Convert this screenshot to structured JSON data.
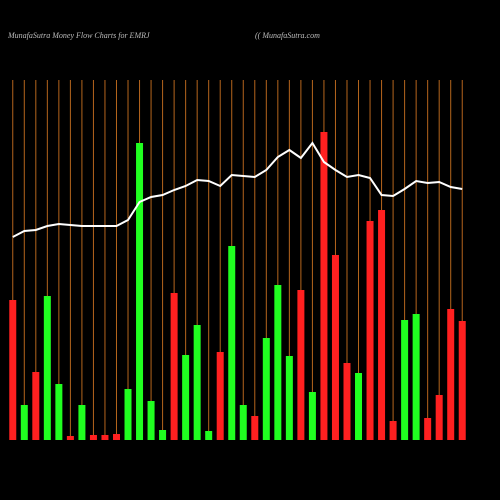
{
  "chart_data": {
    "type": "money-flow",
    "title": "MunafaSutra  Money Flow  Charts for EMRJ",
    "subtitle": "(( MunafaSutra.com",
    "categories": [
      null,
      null,
      null,
      null,
      null,
      null,
      null,
      null,
      null,
      null,
      null,
      null,
      null,
      null,
      null,
      null,
      null,
      null,
      null,
      null,
      null,
      null,
      null,
      null,
      null,
      null,
      null,
      null,
      null,
      null,
      null,
      null,
      null,
      null,
      null,
      null,
      null,
      null,
      null,
      null
    ],
    "series": [
      {
        "type": "bar",
        "values": [
          140,
          35,
          68,
          144,
          56,
          4,
          35,
          5,
          5,
          6,
          51,
          297,
          39,
          10,
          147,
          85,
          115,
          9,
          88,
          194,
          35,
          24,
          102,
          155,
          84,
          150,
          48,
          308,
          185,
          77,
          67,
          219,
          230,
          19,
          120,
          126,
          22,
          45,
          131,
          119
        ],
        "colors": [
          "#ff2020",
          "#20ff20",
          "#ff2020",
          "#20ff20",
          "#20ff20",
          "#ff2020",
          "#20ff20",
          "#ff2020",
          "#ff2020",
          "#ff2020",
          "#20ff20",
          "#20ff20",
          "#20ff20",
          "#20ff20",
          "#ff2020",
          "#20ff20",
          "#20ff20",
          "#20ff20",
          "#ff2020",
          "#20ff20",
          "#20ff20",
          "#ff2020",
          "#20ff20",
          "#20ff20",
          "#20ff20",
          "#ff2020",
          "#20ff20",
          "#ff2020",
          "#ff2020",
          "#ff2020",
          "#20ff20",
          "#ff2020",
          "#ff2020",
          "#ff2020",
          "#20ff20",
          "#20ff20",
          "#ff2020",
          "#ff2020",
          "#ff2020",
          "#ff2020"
        ]
      },
      {
        "type": "line",
        "color": "#ffffff",
        "values": [
          203,
          209,
          210,
          214,
          216,
          215,
          214,
          214,
          214,
          214,
          220,
          238,
          243,
          245,
          250,
          254,
          260,
          259,
          254,
          265,
          264,
          263,
          270,
          283,
          290,
          282,
          297,
          278,
          270,
          263,
          265,
          262,
          245,
          244,
          251,
          259,
          257,
          258,
          253,
          251
        ]
      }
    ],
    "ylim": [
      0,
      360
    ],
    "grid": true,
    "grid_color": "#b5651d"
  }
}
